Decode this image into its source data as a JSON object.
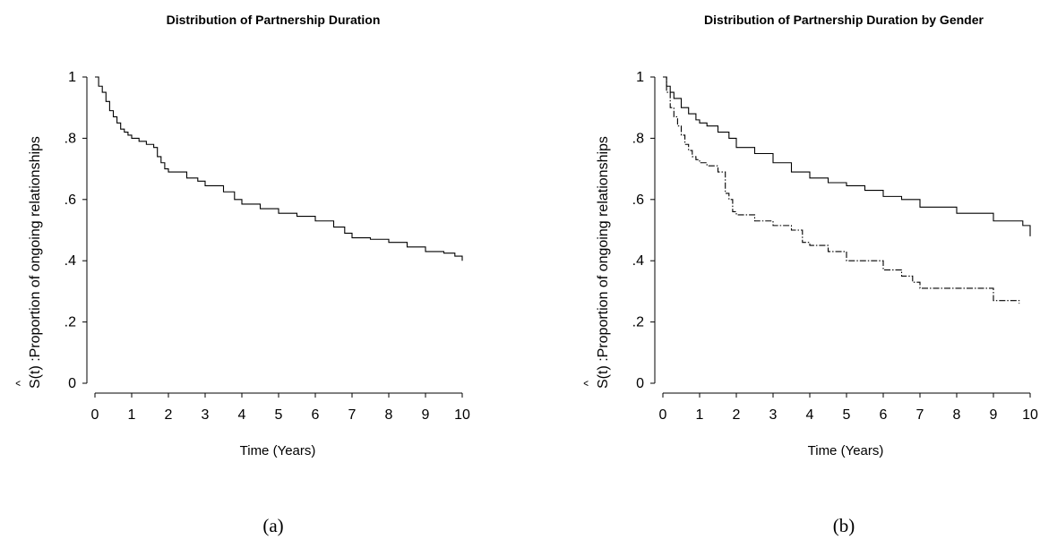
{
  "chart_data": [
    {
      "type": "line",
      "title": "Distribution of Partnership Duration",
      "xlabel": "Time (Years)",
      "ylabel_hat": "^",
      "ylabel": "S(t) :Proportion of ongoing relationships",
      "xlim": [
        0,
        10
      ],
      "ylim": [
        0,
        1
      ],
      "xticks": [
        "0",
        "1",
        "2",
        "3",
        "4",
        "5",
        "6",
        "7",
        "8",
        "9",
        "10"
      ],
      "yticks": [
        {
          "v": 0,
          "label": "0"
        },
        {
          "v": 0.2,
          "label": ".2"
        },
        {
          "v": 0.4,
          "label": ".4"
        },
        {
          "v": 0.6,
          "label": ".6"
        },
        {
          "v": 0.8,
          "label": ".8"
        },
        {
          "v": 1,
          "label": "1"
        }
      ],
      "grid": false,
      "caption": "(a)",
      "series": [
        {
          "style": "solid",
          "x": [
            0,
            0.1,
            0.2,
            0.3,
            0.4,
            0.5,
            0.6,
            0.7,
            0.8,
            0.9,
            1.0,
            1.2,
            1.4,
            1.6,
            1.7,
            1.8,
            1.9,
            2.0,
            2.5,
            2.8,
            3.0,
            3.5,
            3.8,
            4.0,
            4.5,
            5.0,
            5.5,
            6.0,
            6.5,
            6.8,
            7.0,
            7.5,
            8.0,
            8.5,
            9.0,
            9.5,
            9.8,
            10.0
          ],
          "y": [
            1,
            0.97,
            0.95,
            0.92,
            0.89,
            0.87,
            0.85,
            0.83,
            0.82,
            0.81,
            0.8,
            0.79,
            0.78,
            0.77,
            0.74,
            0.72,
            0.7,
            0.69,
            0.67,
            0.66,
            0.645,
            0.625,
            0.6,
            0.585,
            0.57,
            0.555,
            0.545,
            0.53,
            0.51,
            0.49,
            0.475,
            0.47,
            0.46,
            0.445,
            0.43,
            0.425,
            0.415,
            0.4
          ]
        }
      ]
    },
    {
      "type": "line",
      "title": "Distribution of Partnership Duration by Gender",
      "xlabel": "Time (Years)",
      "ylabel_hat": "^",
      "ylabel": "S(t) :Proportion of ongoing relationships",
      "xlim": [
        0,
        10
      ],
      "ylim": [
        0,
        1
      ],
      "xticks": [
        "0",
        "1",
        "2",
        "3",
        "4",
        "5",
        "6",
        "7",
        "8",
        "9",
        "10"
      ],
      "yticks": [
        {
          "v": 0,
          "label": "0"
        },
        {
          "v": 0.2,
          "label": ".2"
        },
        {
          "v": 0.4,
          "label": ".4"
        },
        {
          "v": 0.6,
          "label": ".6"
        },
        {
          "v": 0.8,
          "label": ".8"
        },
        {
          "v": 1,
          "label": "1"
        }
      ],
      "grid": false,
      "caption": "(b)",
      "series": [
        {
          "style": "solid",
          "x": [
            0,
            0.1,
            0.2,
            0.3,
            0.5,
            0.7,
            0.9,
            1.0,
            1.2,
            1.5,
            1.8,
            2.0,
            2.5,
            3.0,
            3.5,
            4.0,
            4.5,
            5.0,
            5.5,
            6.0,
            6.5,
            7.0,
            8.0,
            9.0,
            9.8,
            10.0
          ],
          "y": [
            1,
            0.97,
            0.95,
            0.93,
            0.9,
            0.88,
            0.86,
            0.85,
            0.84,
            0.82,
            0.8,
            0.77,
            0.75,
            0.72,
            0.69,
            0.67,
            0.655,
            0.645,
            0.63,
            0.61,
            0.6,
            0.575,
            0.555,
            0.53,
            0.515,
            0.48
          ]
        },
        {
          "style": "dashed",
          "x": [
            0,
            0.1,
            0.2,
            0.3,
            0.4,
            0.5,
            0.6,
            0.7,
            0.8,
            0.9,
            1.0,
            1.2,
            1.5,
            1.7,
            1.8,
            1.9,
            2.0,
            2.5,
            3.0,
            3.5,
            3.8,
            4.0,
            4.5,
            5.0,
            6.0,
            6.5,
            6.8,
            7.0,
            8.0,
            9.0,
            9.7
          ],
          "y": [
            1,
            0.95,
            0.9,
            0.87,
            0.84,
            0.81,
            0.78,
            0.76,
            0.74,
            0.73,
            0.72,
            0.71,
            0.69,
            0.62,
            0.6,
            0.56,
            0.55,
            0.53,
            0.515,
            0.5,
            0.46,
            0.45,
            0.43,
            0.4,
            0.37,
            0.35,
            0.33,
            0.31,
            0.31,
            0.27,
            0.26
          ]
        }
      ]
    }
  ]
}
